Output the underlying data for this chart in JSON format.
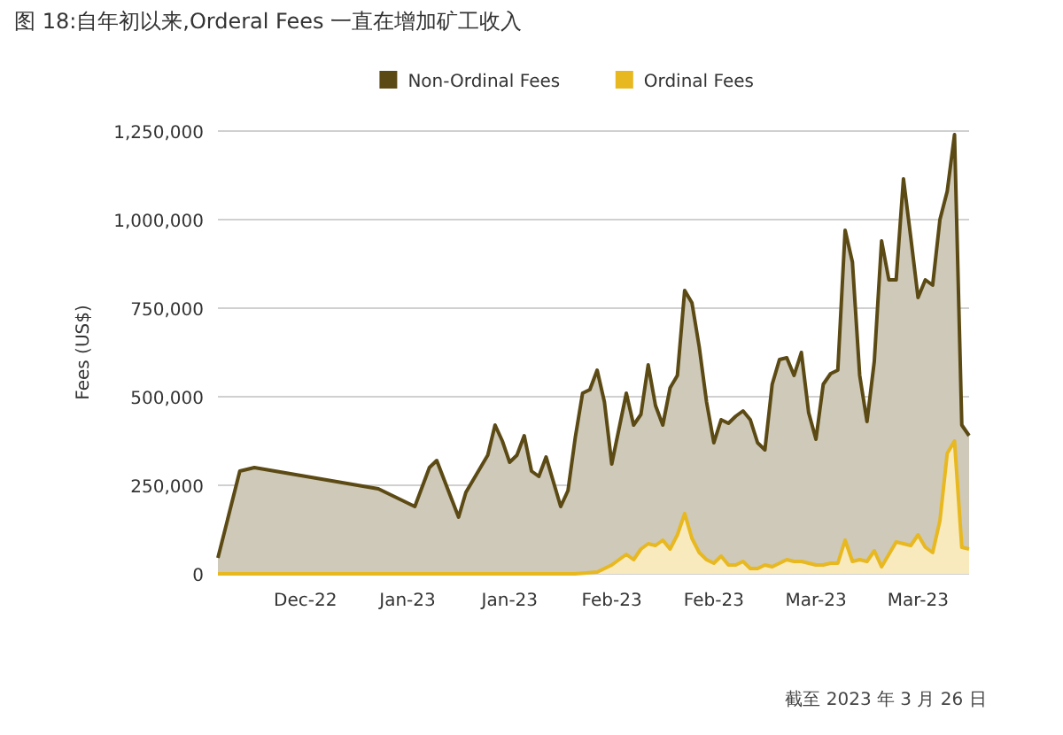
{
  "chart_data": {
    "type": "area",
    "title": "图 18:自年初以来,Orderal Fees 一直在增加矿工收入",
    "ylabel": "Fees (US$)",
    "annotations": [
      "截至 2023 年 3 月 26 日"
    ],
    "legend": "top",
    "grid": "y",
    "xlim": [
      "2022-12-12",
      "2023-03-25"
    ],
    "xticks": [
      {
        "value": "2022-12-24",
        "label": "Dec-22"
      },
      {
        "value": "2023-01-07",
        "label": "Jan-23"
      },
      {
        "value": "2023-01-21",
        "label": "Jan-23"
      },
      {
        "value": "2023-02-04",
        "label": "Feb-23"
      },
      {
        "value": "2023-02-18",
        "label": "Feb-23"
      },
      {
        "value": "2023-03-04",
        "label": "Mar-23"
      },
      {
        "value": "2023-03-18",
        "label": "Mar-23"
      }
    ],
    "ylim": [
      0,
      1250000
    ],
    "yticks": [
      {
        "value": 0,
        "label": "0"
      },
      {
        "value": 250000,
        "label": "250,000"
      },
      {
        "value": 500000,
        "label": "500,000"
      },
      {
        "value": 750000,
        "label": "750,000"
      },
      {
        "value": 1000000,
        "label": "1,000,000"
      },
      {
        "value": 1250000,
        "label": "1,250,000"
      }
    ],
    "series": [
      {
        "name": "Non-Ordinal Fees",
        "color": "#5c4a14",
        "x": [
          "2022-12-12",
          "2022-12-15",
          "2022-12-17",
          "2023-01-03",
          "2023-01-08",
          "2023-01-10",
          "2023-01-11",
          "2023-01-14",
          "2023-01-15",
          "2023-01-18",
          "2023-01-19",
          "2023-01-20",
          "2023-01-21",
          "2023-01-22",
          "2023-01-23",
          "2023-01-24",
          "2023-01-25",
          "2023-01-26",
          "2023-01-28",
          "2023-01-29",
          "2023-01-30",
          "2023-01-31",
          "2023-02-01",
          "2023-02-02",
          "2023-02-03",
          "2023-02-04",
          "2023-02-06",
          "2023-02-07",
          "2023-02-08",
          "2023-02-09",
          "2023-02-10",
          "2023-02-11",
          "2023-02-12",
          "2023-02-13",
          "2023-02-14",
          "2023-02-15",
          "2023-02-16",
          "2023-02-17",
          "2023-02-18",
          "2023-02-19",
          "2023-02-20",
          "2023-02-21",
          "2023-02-22",
          "2023-02-23",
          "2023-02-24",
          "2023-02-25",
          "2023-02-26",
          "2023-02-27",
          "2023-02-28",
          "2023-03-01",
          "2023-03-02",
          "2023-03-03",
          "2023-03-04",
          "2023-03-05",
          "2023-03-06",
          "2023-03-07",
          "2023-03-08",
          "2023-03-09",
          "2023-03-10",
          "2023-03-11",
          "2023-03-12",
          "2023-03-13",
          "2023-03-14",
          "2023-03-15",
          "2023-03-16",
          "2023-03-17",
          "2023-03-18",
          "2023-03-19",
          "2023-03-20",
          "2023-03-21",
          "2023-03-22",
          "2023-03-23",
          "2023-03-24",
          "2023-03-25"
        ],
        "values": [
          45000,
          290000,
          300000,
          240000,
          190000,
          300000,
          320000,
          160000,
          230000,
          335000,
          420000,
          375000,
          315000,
          335000,
          390000,
          290000,
          275000,
          330000,
          190000,
          235000,
          385000,
          510000,
          520000,
          575000,
          485000,
          310000,
          510000,
          420000,
          450000,
          590000,
          475000,
          420000,
          525000,
          560000,
          800000,
          765000,
          640000,
          485000,
          370000,
          435000,
          425000,
          445000,
          460000,
          435000,
          370000,
          350000,
          535000,
          605000,
          610000,
          560000,
          625000,
          455000,
          380000,
          535000,
          565000,
          575000,
          970000,
          880000,
          560000,
          430000,
          600000,
          940000,
          830000,
          830000,
          1115000,
          950000,
          780000,
          830000,
          815000,
          1000000,
          1080000,
          1240000,
          420000,
          390000
        ]
      },
      {
        "name": "Ordinal Fees",
        "color": "#e8b820",
        "x": [
          "2022-12-12",
          "2023-01-30",
          "2023-02-02",
          "2023-02-04",
          "2023-02-06",
          "2023-02-07",
          "2023-02-08",
          "2023-02-09",
          "2023-02-10",
          "2023-02-11",
          "2023-02-12",
          "2023-02-13",
          "2023-02-14",
          "2023-02-15",
          "2023-02-16",
          "2023-02-17",
          "2023-02-18",
          "2023-02-19",
          "2023-02-20",
          "2023-02-21",
          "2023-02-22",
          "2023-02-23",
          "2023-02-24",
          "2023-02-25",
          "2023-02-26",
          "2023-02-27",
          "2023-02-28",
          "2023-03-01",
          "2023-03-02",
          "2023-03-03",
          "2023-03-04",
          "2023-03-05",
          "2023-03-06",
          "2023-03-07",
          "2023-03-08",
          "2023-03-09",
          "2023-03-10",
          "2023-03-11",
          "2023-03-12",
          "2023-03-13",
          "2023-03-14",
          "2023-03-15",
          "2023-03-16",
          "2023-03-17",
          "2023-03-18",
          "2023-03-19",
          "2023-03-20",
          "2023-03-21",
          "2023-03-22",
          "2023-03-23",
          "2023-03-24",
          "2023-03-25"
        ],
        "values": [
          0,
          0,
          5000,
          25000,
          55000,
          40000,
          70000,
          85000,
          80000,
          95000,
          70000,
          110000,
          170000,
          100000,
          60000,
          40000,
          30000,
          50000,
          25000,
          25000,
          35000,
          15000,
          15000,
          25000,
          20000,
          30000,
          40000,
          35000,
          35000,
          30000,
          25000,
          25000,
          30000,
          30000,
          95000,
          35000,
          40000,
          35000,
          65000,
          20000,
          55000,
          90000,
          85000,
          80000,
          110000,
          75000,
          60000,
          150000,
          340000,
          375000,
          75000,
          70000
        ]
      }
    ]
  }
}
